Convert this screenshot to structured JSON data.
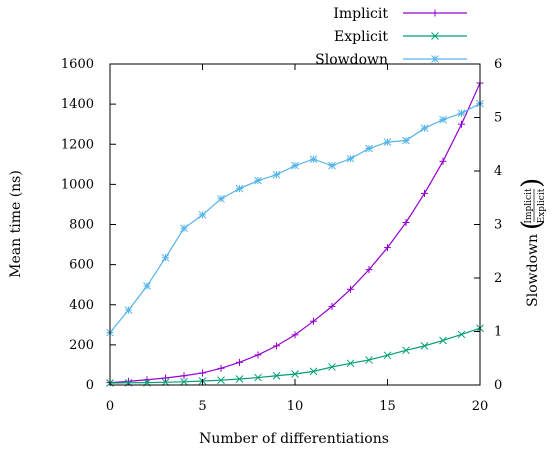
{
  "chart_data": {
    "type": "line",
    "xlabel": "Number of differentiations",
    "ylabel": "Mean time (ns)",
    "y2label": {
      "prefix": "Slowdown",
      "numerator": "Implicit",
      "denominator": "Explicit"
    },
    "xlim": [
      0,
      20
    ],
    "ylim": [
      0,
      1600
    ],
    "y2lim": [
      0,
      6
    ],
    "xticks": [
      0,
      5,
      10,
      15,
      20
    ],
    "yticks": [
      0,
      200,
      400,
      600,
      800,
      1000,
      1200,
      1400,
      1600
    ],
    "y2ticks": [
      0,
      1,
      2,
      3,
      4,
      5,
      6
    ],
    "grid": false,
    "legend_position": "top-right",
    "series": [
      {
        "name": "Implicit",
        "axis": "left",
        "color": "#9400d3",
        "marker": "plus",
        "x": [
          0,
          1,
          2,
          3,
          4,
          5,
          6,
          7,
          8,
          9,
          10,
          11,
          12,
          13,
          14,
          15,
          16,
          17,
          18,
          19,
          20
        ],
        "y": [
          12,
          18,
          26,
          35,
          46,
          60,
          83,
          113,
          150,
          195,
          250,
          318,
          392,
          477,
          575,
          685,
          810,
          955,
          1115,
          1300,
          1505
        ]
      },
      {
        "name": "Explicit",
        "axis": "left",
        "color": "#009e73",
        "marker": "cross",
        "x": [
          0,
          1,
          2,
          3,
          4,
          5,
          6,
          7,
          8,
          9,
          10,
          11,
          12,
          13,
          14,
          15,
          16,
          17,
          18,
          19,
          20
        ],
        "y": [
          10,
          11,
          12,
          14,
          16,
          20,
          24,
          30,
          37,
          46,
          55,
          68,
          90,
          108,
          125,
          148,
          173,
          195,
          222,
          252,
          283
        ]
      },
      {
        "name": "Slowdown",
        "axis": "right",
        "color": "#56b4e9",
        "marker": "star",
        "x": [
          0,
          1,
          2,
          3,
          4,
          5,
          6,
          7,
          8,
          9,
          10,
          11,
          12,
          13,
          14,
          15,
          16,
          17,
          18,
          19,
          20
        ],
        "y": [
          0.98,
          1.4,
          1.85,
          2.38,
          2.93,
          3.18,
          3.48,
          3.67,
          3.82,
          3.93,
          4.1,
          4.22,
          4.1,
          4.23,
          4.42,
          4.54,
          4.57,
          4.8,
          4.96,
          5.08,
          5.26
        ]
      }
    ]
  }
}
